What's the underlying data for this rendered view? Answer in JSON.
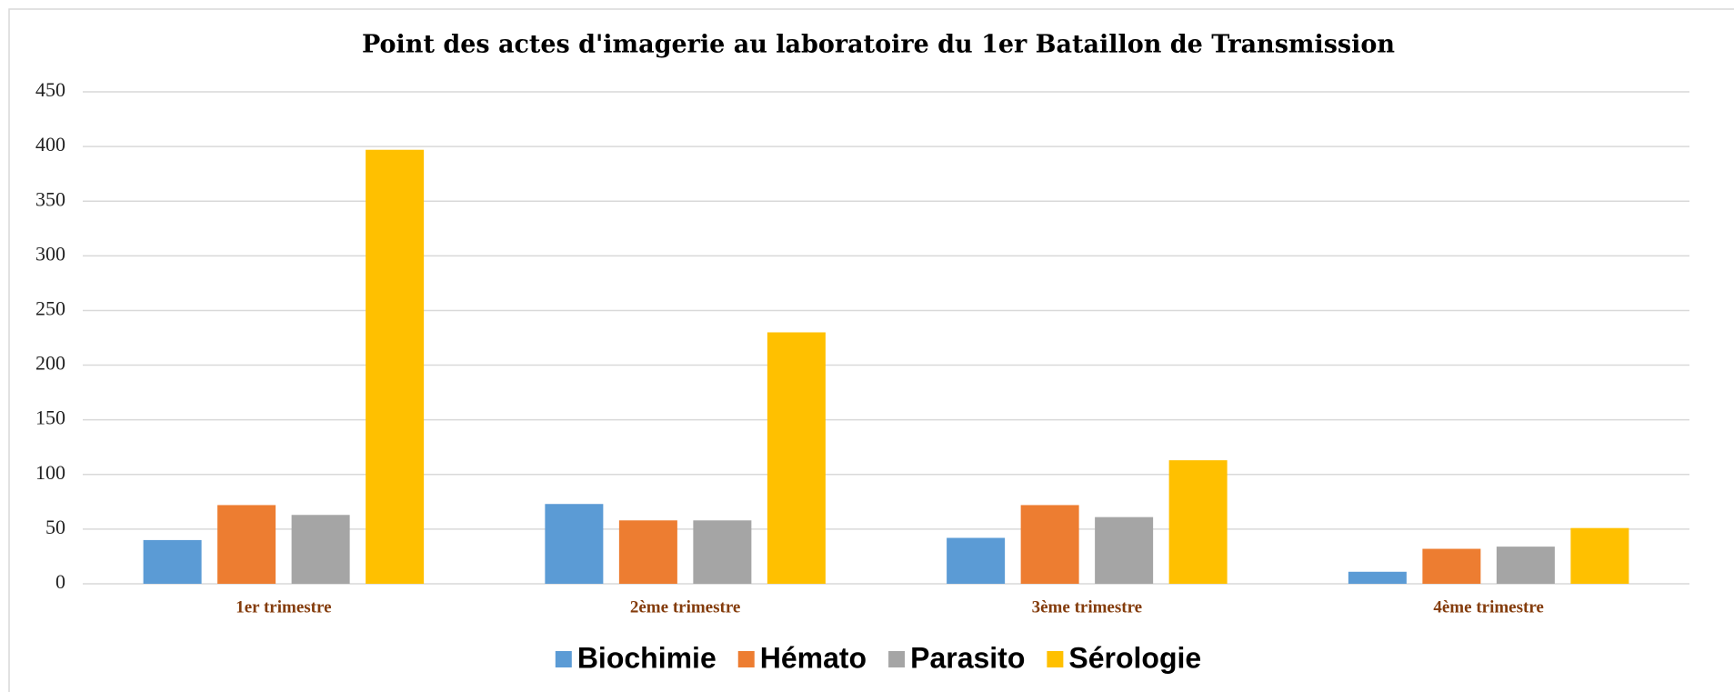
{
  "chart_data": {
    "type": "bar",
    "title": "Point des actes d'imagerie au laboratoire du 1er Bataillon de Transmission",
    "categories": [
      "1er trimestre",
      "2ème trimestre",
      "3ème trimestre",
      "4ème trimestre"
    ],
    "series": [
      {
        "name": "Biochimie",
        "color": "#5b9bd5",
        "values": [
          40,
          73,
          42,
          11
        ]
      },
      {
        "name": "Hémato",
        "color": "#ed7d31",
        "values": [
          72,
          58,
          72,
          32
        ]
      },
      {
        "name": "Parasito",
        "color": "#a5a5a5",
        "values": [
          63,
          58,
          61,
          34
        ]
      },
      {
        "name": "Sérologie",
        "color": "#ffc000",
        "values": [
          397,
          230,
          113,
          51
        ]
      }
    ],
    "ylim": [
      0,
      450
    ],
    "yticks": [
      0,
      50,
      100,
      150,
      200,
      250,
      300,
      350,
      400,
      450
    ],
    "grid": true,
    "legend": "bottom"
  }
}
